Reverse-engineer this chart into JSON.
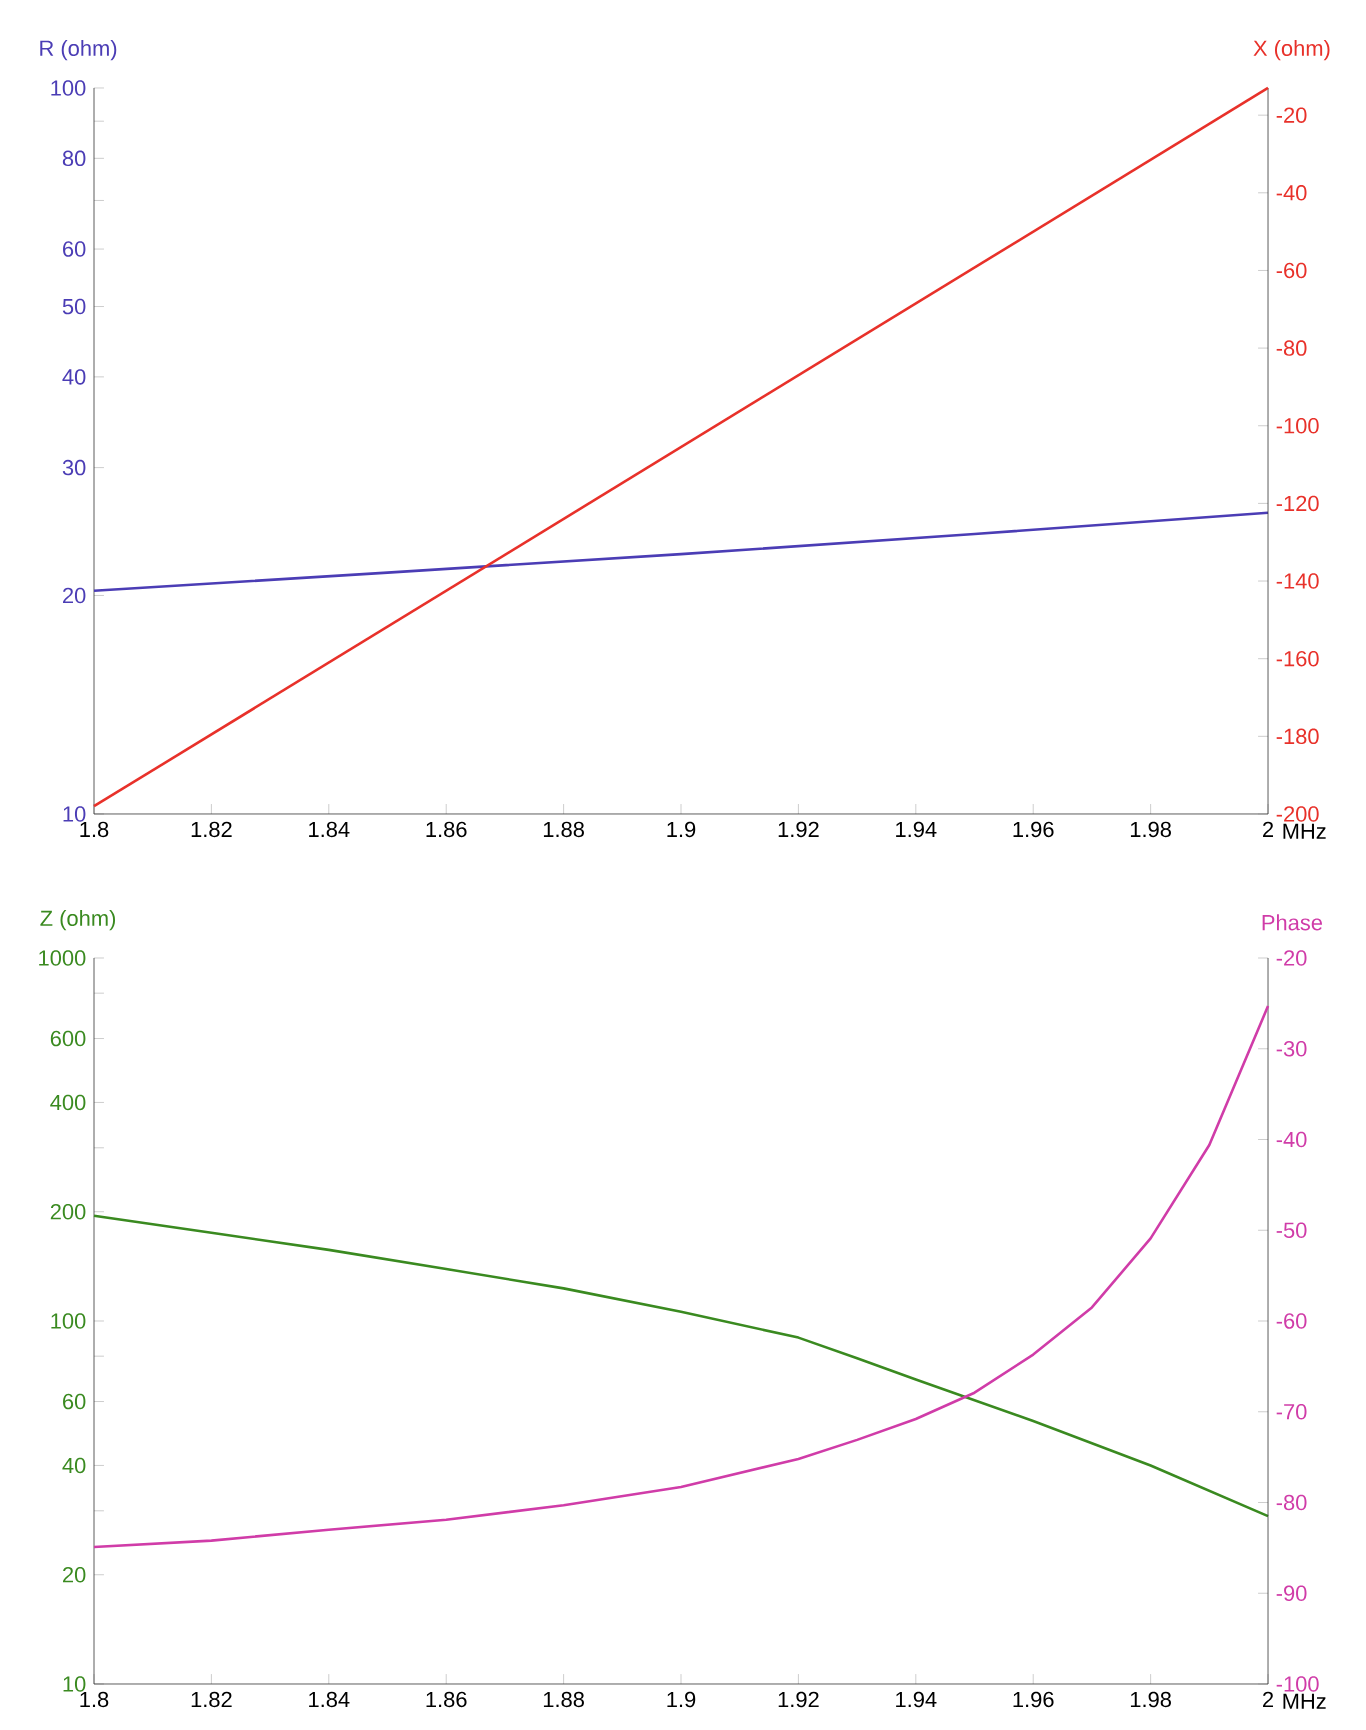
{
  "chart_data": [
    {
      "type": "line",
      "xlabel": "MHz",
      "ylabel": "R (ohm)",
      "y2label": "X (ohm)",
      "log": "y",
      "xlim": [
        1.8,
        2
      ],
      "xticks": [
        1.8,
        1.82,
        1.84,
        1.86,
        1.88,
        1.9,
        1.92,
        1.94,
        1.96,
        1.98,
        2
      ],
      "ylim": [
        10,
        100
      ],
      "yticks": [
        10,
        20,
        30,
        40,
        50,
        60,
        {
          "value": 70,
          "label": null
        },
        80,
        {
          "value": 90,
          "label": null
        },
        100
      ],
      "y2lim": [
        -200,
        -13
      ],
      "y2ticks": [
        -200,
        -180,
        -160,
        -140,
        -120,
        -100,
        -80,
        -60,
        -40,
        -20
      ],
      "series": [
        {
          "color": "#4b3db5",
          "x": [
            1.8,
            1.85,
            1.9,
            1.95,
            2
          ],
          "values": [
            20.3,
            21.5,
            22.8,
            24.3,
            26
          ]
        },
        {
          "color": "#e8312a",
          "axis": "y2",
          "x": [
            1.8,
            2
          ],
          "values": [
            -198,
            -13
          ]
        }
      ]
    },
    {
      "type": "line",
      "xlabel": "MHz",
      "ylabel": "Z (ohm)",
      "y2label": "Phase",
      "log": "y",
      "xlim": [
        1.8,
        2
      ],
      "xticks": [
        1.8,
        1.82,
        1.84,
        1.86,
        1.88,
        1.9,
        1.92,
        1.94,
        1.96,
        1.98,
        2
      ],
      "ylim": [
        10,
        1000
      ],
      "yticks": [
        10,
        20,
        {
          "value": 30,
          "label": null
        },
        40,
        60,
        {
          "value": 80,
          "label": null
        },
        100,
        200,
        {
          "value": 300,
          "label": null
        },
        400,
        600,
        {
          "value": 800,
          "label": null
        },
        1000
      ],
      "y2lim": [
        -100,
        -20
      ],
      "y2ticks": [
        -100,
        -90,
        -80,
        -70,
        -60,
        -50,
        -40,
        -30,
        -20
      ],
      "series": [
        {
          "color": "#3a8a20",
          "x": [
            1.8,
            1.82,
            1.84,
            1.86,
            1.88,
            1.9,
            1.92,
            1.93,
            1.94,
            1.96,
            1.98,
            2
          ],
          "values": [
            195,
            175,
            157,
            139,
            123,
            106,
            90,
            79,
            69,
            53,
            40,
            29
          ]
        },
        {
          "color": "#d03ca8",
          "axis": "y2",
          "x": [
            1.8,
            1.82,
            1.84,
            1.86,
            1.88,
            1.9,
            1.92,
            1.93,
            1.94,
            1.95,
            1.96,
            1.97,
            1.98,
            1.99,
            2
          ],
          "values": [
            -84.9,
            -84.2,
            -83.0,
            -81.9,
            -80.3,
            -78.3,
            -75.2,
            -73.1,
            -70.8,
            -67.9,
            -63.7,
            -58.5,
            -50.9,
            -40.6,
            -25.3
          ]
        }
      ]
    }
  ]
}
